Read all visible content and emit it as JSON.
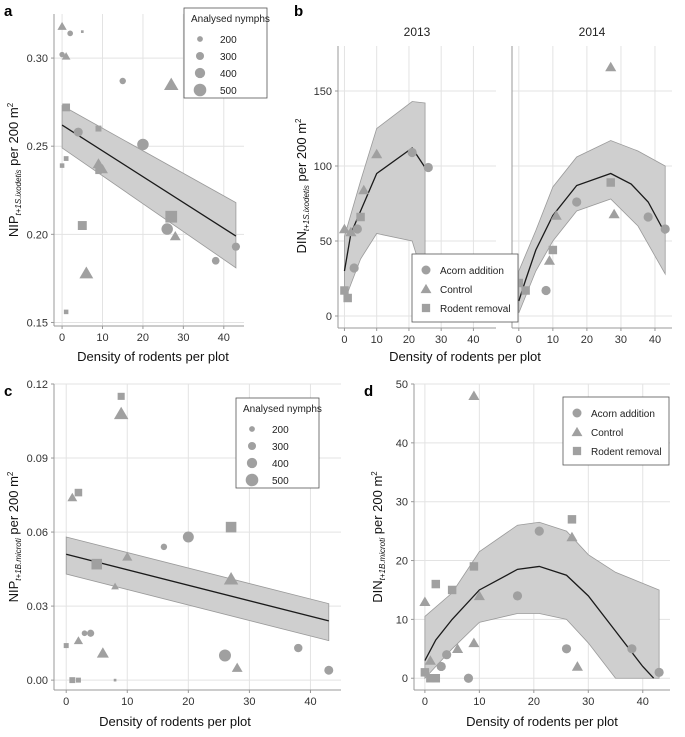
{
  "colors": {
    "grid": "#e3e3e3",
    "axis": "#999999",
    "band": "#cfcfcf",
    "band_stroke": "#9a9a9a",
    "line": "#1a1a1a",
    "point": "#a0a0a0"
  },
  "chart_data": [
    {
      "id": "a",
      "panel_label": "a",
      "type": "scatter",
      "xlabel": "Density of rodents per plot",
      "ylabel_main": "NIP",
      "ylabel_sub": "t+1S.ixodetis",
      "ylabel_rest": " per 200 m",
      "ylabel_sup": "2",
      "xlim": [
        -2,
        45
      ],
      "ylim": [
        0.148,
        0.325
      ],
      "xticks": [
        0,
        10,
        20,
        30,
        40
      ],
      "xtick_labels": [
        "0",
        "10",
        "20",
        "30",
        "40"
      ],
      "yticks": [
        0.15,
        0.2,
        0.25,
        0.3
      ],
      "ytick_labels": [
        "0.15",
        "0.20",
        "0.25",
        "0.30"
      ],
      "legend": {
        "title": "Analysed nymphs",
        "sizes": [
          200,
          300,
          400,
          500
        ],
        "labels": [
          "200",
          "300",
          "400",
          "500"
        ],
        "position": "top-right"
      },
      "fit": {
        "x": [
          0,
          43
        ],
        "y": [
          0.262,
          0.199
        ]
      },
      "band": {
        "x": [
          0,
          43
        ],
        "upper": [
          0.273,
          0.218
        ],
        "lower": [
          0.249,
          0.181
        ]
      },
      "points": [
        {
          "x": 0,
          "y": 0.318,
          "shape": "triangle",
          "size": 250
        },
        {
          "x": 0,
          "y": 0.302,
          "shape": "circle",
          "size": 160
        },
        {
          "x": 1,
          "y": 0.301,
          "shape": "triangle",
          "size": 230
        },
        {
          "x": 2,
          "y": 0.314,
          "shape": "circle",
          "size": 170
        },
        {
          "x": 5,
          "y": 0.315,
          "shape": "square",
          "size": 60
        },
        {
          "x": 1,
          "y": 0.272,
          "shape": "square",
          "size": 280
        },
        {
          "x": 0,
          "y": 0.239,
          "shape": "square",
          "size": 140
        },
        {
          "x": 1,
          "y": 0.243,
          "shape": "square",
          "size": 150
        },
        {
          "x": 1,
          "y": 0.156,
          "shape": "square",
          "size": 140
        },
        {
          "x": 4,
          "y": 0.258,
          "shape": "circle",
          "size": 300
        },
        {
          "x": 5,
          "y": 0.205,
          "shape": "square",
          "size": 330
        },
        {
          "x": 6,
          "y": 0.178,
          "shape": "triangle",
          "size": 400
        },
        {
          "x": 9,
          "y": 0.26,
          "shape": "square",
          "size": 200
        },
        {
          "x": 9,
          "y": 0.24,
          "shape": "triangle",
          "size": 330
        },
        {
          "x": 9,
          "y": 0.236,
          "shape": "square",
          "size": 220
        },
        {
          "x": 10,
          "y": 0.237,
          "shape": "triangle",
          "size": 300
        },
        {
          "x": 15,
          "y": 0.287,
          "shape": "circle",
          "size": 200
        },
        {
          "x": 20,
          "y": 0.251,
          "shape": "circle",
          "size": 400
        },
        {
          "x": 26,
          "y": 0.203,
          "shape": "circle",
          "size": 400
        },
        {
          "x": 27,
          "y": 0.285,
          "shape": "triangle",
          "size": 420
        },
        {
          "x": 27,
          "y": 0.21,
          "shape": "square",
          "size": 450
        },
        {
          "x": 28,
          "y": 0.199,
          "shape": "triangle",
          "size": 300
        },
        {
          "x": 38,
          "y": 0.185,
          "shape": "circle",
          "size": 250
        },
        {
          "x": 43,
          "y": 0.193,
          "shape": "circle",
          "size": 270
        }
      ]
    },
    {
      "id": "b",
      "panel_label": "b",
      "type": "scatter",
      "xlabel": "Density of rodents per plot",
      "ylabel_main": "DIN",
      "ylabel_sub": "t+1S.ixodetis",
      "ylabel_rest": " per 200 m",
      "ylabel_sup": "2",
      "ylim": [
        -8,
        180
      ],
      "yticks": [
        0,
        50,
        100,
        150
      ],
      "ytick_labels": [
        "0",
        "50",
        "100",
        "150"
      ],
      "legend": {
        "entries": [
          {
            "shape": "circle",
            "label": "Acorn addition"
          },
          {
            "shape": "triangle",
            "label": "Control"
          },
          {
            "shape": "square",
            "label": "Rodent removal"
          }
        ],
        "position": "bottom-left"
      },
      "facets": [
        {
          "title": "2013",
          "xlim": [
            -2,
            47
          ],
          "xticks": [
            0,
            10,
            20,
            30,
            40
          ],
          "xtick_labels": [
            "0",
            "10",
            "20",
            "30",
            "40"
          ],
          "fit": {
            "x": [
              0,
              2,
              5,
              10,
              21,
              25
            ],
            "y": [
              30,
              55,
              70,
              95,
              112,
              99
            ]
          },
          "band": {
            "x": [
              0,
              5,
              10,
              21,
              25
            ],
            "upper": [
              53,
              90,
              125,
              143,
              142
            ],
            "lower": [
              10,
              38,
              55,
              50,
              22
            ]
          },
          "points": [
            {
              "x": 0,
              "y": 58,
              "shape": "triangle"
            },
            {
              "x": 0,
              "y": 17,
              "shape": "square"
            },
            {
              "x": 1,
              "y": 12,
              "shape": "square"
            },
            {
              "x": 2,
              "y": 56,
              "shape": "triangle"
            },
            {
              "x": 3,
              "y": 32,
              "shape": "circle"
            },
            {
              "x": 4,
              "y": 58,
              "shape": "circle"
            },
            {
              "x": 5,
              "y": 66,
              "shape": "square"
            },
            {
              "x": 6,
              "y": 84,
              "shape": "triangle"
            },
            {
              "x": 10,
              "y": 108,
              "shape": "triangle"
            },
            {
              "x": 21,
              "y": 109,
              "shape": "circle"
            },
            {
              "x": 26,
              "y": 99,
              "shape": "circle"
            }
          ]
        },
        {
          "title": "2014",
          "xlim": [
            -2,
            45
          ],
          "xticks": [
            0,
            10,
            20,
            30,
            40
          ],
          "xtick_labels": [
            "0",
            "10",
            "20",
            "30",
            "40"
          ],
          "fit": {
            "x": [
              0,
              2,
              5,
              10,
              17,
              27,
              33,
              38,
              43
            ],
            "y": [
              10,
              24,
              44,
              67,
              87,
              95,
              88,
              76,
              55
            ]
          },
          "band": {
            "x": [
              0,
              5,
              10,
              17,
              27,
              35,
              43
            ],
            "upper": [
              30,
              57,
              86,
              106,
              117,
              110,
              100
            ],
            "lower": [
              2,
              30,
              50,
              70,
              78,
              60,
              28
            ]
          },
          "points": [
            {
              "x": 0,
              "y": 22,
              "shape": "square"
            },
            {
              "x": 2,
              "y": 17,
              "shape": "square"
            },
            {
              "x": 8,
              "y": 17,
              "shape": "circle"
            },
            {
              "x": 9,
              "y": 37,
              "shape": "triangle"
            },
            {
              "x": 10,
              "y": 44,
              "shape": "square"
            },
            {
              "x": 11,
              "y": 67,
              "shape": "triangle"
            },
            {
              "x": 17,
              "y": 76,
              "shape": "circle"
            },
            {
              "x": 27,
              "y": 166,
              "shape": "triangle"
            },
            {
              "x": 27,
              "y": 89,
              "shape": "square"
            },
            {
              "x": 28,
              "y": 68,
              "shape": "triangle"
            },
            {
              "x": 38,
              "y": 66,
              "shape": "circle"
            },
            {
              "x": 43,
              "y": 58,
              "shape": "circle"
            }
          ]
        }
      ]
    },
    {
      "id": "c",
      "panel_label": "c",
      "type": "scatter",
      "xlabel": "Density of rodents per plot",
      "ylabel_main": "NIP",
      "ylabel_sub": "t+1B.microti",
      "ylabel_rest": " per 200 m",
      "ylabel_sup": "2",
      "xlim": [
        -2,
        45
      ],
      "ylim": [
        -0.004,
        0.12
      ],
      "xticks": [
        0,
        10,
        20,
        30,
        40
      ],
      "xtick_labels": [
        "0",
        "10",
        "20",
        "30",
        "40"
      ],
      "yticks": [
        0.0,
        0.03,
        0.06,
        0.09,
        0.12
      ],
      "ytick_labels": [
        "0.00",
        "0.03",
        "0.06",
        "0.09",
        "0.12"
      ],
      "legend": {
        "title": "Analysed nymphs",
        "sizes": [
          200,
          300,
          400,
          500
        ],
        "labels": [
          "200",
          "300",
          "400",
          "500"
        ],
        "position": "top-right"
      },
      "fit": {
        "x": [
          0,
          43
        ],
        "y": [
          0.051,
          0.024
        ]
      },
      "band": {
        "x": [
          0,
          43
        ],
        "upper": [
          0.058,
          0.031
        ],
        "lower": [
          0.043,
          0.016
        ]
      },
      "points": [
        {
          "x": 9,
          "y": 0.115,
          "shape": "square",
          "size": 250
        },
        {
          "x": 9,
          "y": 0.108,
          "shape": "triangle",
          "size": 420
        },
        {
          "x": 1,
          "y": 0.074,
          "shape": "triangle",
          "size": 270
        },
        {
          "x": 2,
          "y": 0.076,
          "shape": "square",
          "size": 270
        },
        {
          "x": 0,
          "y": 0.014,
          "shape": "square",
          "size": 160
        },
        {
          "x": 1,
          "y": 0.0,
          "shape": "square",
          "size": 200
        },
        {
          "x": 2,
          "y": 0.0,
          "shape": "square",
          "size": 160
        },
        {
          "x": 1,
          "y": 0.0,
          "shape": "square",
          "size": 140
        },
        {
          "x": 2,
          "y": 0.016,
          "shape": "triangle",
          "size": 250
        },
        {
          "x": 3,
          "y": 0.019,
          "shape": "circle",
          "size": 170
        },
        {
          "x": 4,
          "y": 0.019,
          "shape": "circle",
          "size": 230
        },
        {
          "x": 5,
          "y": 0.047,
          "shape": "square",
          "size": 400
        },
        {
          "x": 6,
          "y": 0.011,
          "shape": "triangle",
          "size": 340
        },
        {
          "x": 8,
          "y": 0.038,
          "shape": "triangle",
          "size": 200
        },
        {
          "x": 8,
          "y": 0.0,
          "shape": "square",
          "size": 60
        },
        {
          "x": 10,
          "y": 0.05,
          "shape": "triangle",
          "size": 280
        },
        {
          "x": 16,
          "y": 0.054,
          "shape": "circle",
          "size": 200
        },
        {
          "x": 20,
          "y": 0.058,
          "shape": "circle",
          "size": 380
        },
        {
          "x": 26,
          "y": 0.01,
          "shape": "circle",
          "size": 420
        },
        {
          "x": 27,
          "y": 0.062,
          "shape": "square",
          "size": 400
        },
        {
          "x": 27,
          "y": 0.041,
          "shape": "triangle",
          "size": 420
        },
        {
          "x": 28,
          "y": 0.005,
          "shape": "triangle",
          "size": 300
        },
        {
          "x": 38,
          "y": 0.013,
          "shape": "circle",
          "size": 280
        },
        {
          "x": 43,
          "y": 0.004,
          "shape": "circle",
          "size": 300
        }
      ]
    },
    {
      "id": "d",
      "panel_label": "d",
      "type": "scatter",
      "xlabel": "Density of rodents per plot",
      "ylabel_main": "DIN",
      "ylabel_sub": "t+1B.microti",
      "ylabel_rest": " per 200 m",
      "ylabel_sup": "2",
      "xlim": [
        -2,
        45
      ],
      "ylim": [
        -2,
        50
      ],
      "xticks": [
        0,
        10,
        20,
        30,
        40
      ],
      "xtick_labels": [
        "0",
        "10",
        "20",
        "30",
        "40"
      ],
      "yticks": [
        0,
        10,
        20,
        30,
        40,
        50
      ],
      "ytick_labels": [
        "0",
        "10",
        "20",
        "30",
        "40",
        "50"
      ],
      "legend": {
        "entries": [
          {
            "shape": "circle",
            "label": "Acorn addition"
          },
          {
            "shape": "triangle",
            "label": "Control"
          },
          {
            "shape": "square",
            "label": "Rodent removal"
          }
        ],
        "position": "top-right"
      },
      "fit": {
        "x": [
          0,
          2,
          5,
          10,
          17,
          21,
          26,
          30,
          35,
          40,
          42
        ],
        "y": [
          3,
          6.5,
          10,
          15,
          18.5,
          19,
          17.5,
          14,
          8,
          2,
          0
        ]
      },
      "band": {
        "x": [
          0,
          5,
          10,
          17,
          21,
          26,
          30,
          35,
          43
        ],
        "upper": [
          10.5,
          14.5,
          21.5,
          26,
          26.5,
          25,
          21,
          18,
          15
        ],
        "lower": [
          0,
          5,
          9.5,
          11,
          11,
          10,
          6,
          0,
          0
        ]
      },
      "points": [
        {
          "x": 9,
          "y": 48,
          "shape": "triangle"
        },
        {
          "x": 0,
          "y": 13,
          "shape": "triangle"
        },
        {
          "x": 0,
          "y": 1,
          "shape": "square"
        },
        {
          "x": 1,
          "y": 0,
          "shape": "square"
        },
        {
          "x": 1,
          "y": 3,
          "shape": "triangle"
        },
        {
          "x": 2,
          "y": 16,
          "shape": "square"
        },
        {
          "x": 2,
          "y": 0,
          "shape": "square"
        },
        {
          "x": 3,
          "y": 2,
          "shape": "circle"
        },
        {
          "x": 4,
          "y": 4,
          "shape": "circle"
        },
        {
          "x": 5,
          "y": 15,
          "shape": "square"
        },
        {
          "x": 6,
          "y": 5,
          "shape": "triangle"
        },
        {
          "x": 8,
          "y": 0,
          "shape": "circle"
        },
        {
          "x": 9,
          "y": 6,
          "shape": "triangle"
        },
        {
          "x": 9,
          "y": 19,
          "shape": "square"
        },
        {
          "x": 10,
          "y": 14,
          "shape": "triangle"
        },
        {
          "x": 17,
          "y": 14,
          "shape": "circle"
        },
        {
          "x": 21,
          "y": 25,
          "shape": "circle"
        },
        {
          "x": 26,
          "y": 5,
          "shape": "circle"
        },
        {
          "x": 27,
          "y": 27,
          "shape": "square"
        },
        {
          "x": 27,
          "y": 24,
          "shape": "triangle"
        },
        {
          "x": 28,
          "y": 2,
          "shape": "triangle"
        },
        {
          "x": 38,
          "y": 5,
          "shape": "circle"
        },
        {
          "x": 43,
          "y": 1,
          "shape": "circle"
        }
      ]
    }
  ]
}
